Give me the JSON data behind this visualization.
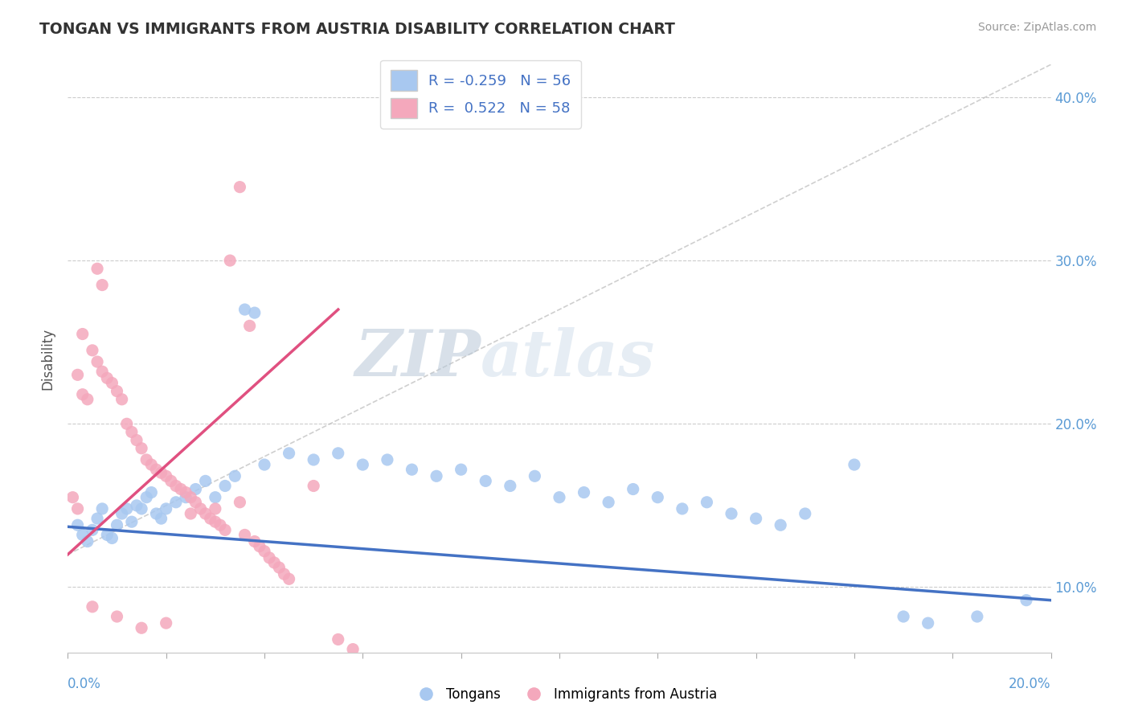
{
  "title": "TONGAN VS IMMIGRANTS FROM AUSTRIA DISABILITY CORRELATION CHART",
  "source": "Source: ZipAtlas.com",
  "ylabel": "Disability",
  "watermark_zip": "ZIP",
  "watermark_atlas": "atlas",
  "legend_blue_label": "Tongans",
  "legend_pink_label": "Immigrants from Austria",
  "blue_R": -0.259,
  "blue_N": 56,
  "pink_R": 0.522,
  "pink_N": 58,
  "xlim": [
    0.0,
    0.2
  ],
  "ylim": [
    0.06,
    0.42
  ],
  "yticks": [
    0.1,
    0.2,
    0.3,
    0.4
  ],
  "ytick_labels": [
    "10.0%",
    "20.0%",
    "30.0%",
    "40.0%"
  ],
  "blue_color": "#A8C8F0",
  "pink_color": "#F4A8BC",
  "blue_line_color": "#4472C4",
  "pink_line_color": "#E05080",
  "grid_color": "#CCCCCC",
  "ref_line_color": "#BBBBBB",
  "blue_scatter": [
    [
      0.002,
      0.138
    ],
    [
      0.003,
      0.132
    ],
    [
      0.004,
      0.128
    ],
    [
      0.005,
      0.135
    ],
    [
      0.006,
      0.142
    ],
    [
      0.007,
      0.148
    ],
    [
      0.008,
      0.132
    ],
    [
      0.009,
      0.13
    ],
    [
      0.01,
      0.138
    ],
    [
      0.011,
      0.145
    ],
    [
      0.012,
      0.148
    ],
    [
      0.013,
      0.14
    ],
    [
      0.014,
      0.15
    ],
    [
      0.015,
      0.148
    ],
    [
      0.016,
      0.155
    ],
    [
      0.017,
      0.158
    ],
    [
      0.018,
      0.145
    ],
    [
      0.019,
      0.142
    ],
    [
      0.02,
      0.148
    ],
    [
      0.022,
      0.152
    ],
    [
      0.024,
      0.155
    ],
    [
      0.026,
      0.16
    ],
    [
      0.028,
      0.165
    ],
    [
      0.03,
      0.155
    ],
    [
      0.032,
      0.162
    ],
    [
      0.034,
      0.168
    ],
    [
      0.036,
      0.27
    ],
    [
      0.038,
      0.268
    ],
    [
      0.04,
      0.175
    ],
    [
      0.045,
      0.182
    ],
    [
      0.05,
      0.178
    ],
    [
      0.055,
      0.182
    ],
    [
      0.06,
      0.175
    ],
    [
      0.065,
      0.178
    ],
    [
      0.07,
      0.172
    ],
    [
      0.075,
      0.168
    ],
    [
      0.08,
      0.172
    ],
    [
      0.085,
      0.165
    ],
    [
      0.09,
      0.162
    ],
    [
      0.095,
      0.168
    ],
    [
      0.1,
      0.155
    ],
    [
      0.105,
      0.158
    ],
    [
      0.11,
      0.152
    ],
    [
      0.115,
      0.16
    ],
    [
      0.12,
      0.155
    ],
    [
      0.125,
      0.148
    ],
    [
      0.13,
      0.152
    ],
    [
      0.135,
      0.145
    ],
    [
      0.14,
      0.142
    ],
    [
      0.145,
      0.138
    ],
    [
      0.15,
      0.145
    ],
    [
      0.16,
      0.175
    ],
    [
      0.17,
      0.082
    ],
    [
      0.175,
      0.078
    ],
    [
      0.185,
      0.082
    ],
    [
      0.195,
      0.092
    ]
  ],
  "pink_scatter": [
    [
      0.001,
      0.155
    ],
    [
      0.002,
      0.148
    ],
    [
      0.003,
      0.218
    ],
    [
      0.004,
      0.215
    ],
    [
      0.005,
      0.245
    ],
    [
      0.006,
      0.238
    ],
    [
      0.007,
      0.232
    ],
    [
      0.008,
      0.228
    ],
    [
      0.009,
      0.225
    ],
    [
      0.01,
      0.22
    ],
    [
      0.011,
      0.215
    ],
    [
      0.012,
      0.2
    ],
    [
      0.013,
      0.195
    ],
    [
      0.014,
      0.19
    ],
    [
      0.015,
      0.185
    ],
    [
      0.016,
      0.178
    ],
    [
      0.017,
      0.175
    ],
    [
      0.018,
      0.172
    ],
    [
      0.019,
      0.17
    ],
    [
      0.02,
      0.168
    ],
    [
      0.021,
      0.165
    ],
    [
      0.022,
      0.162
    ],
    [
      0.023,
      0.16
    ],
    [
      0.024,
      0.158
    ],
    [
      0.025,
      0.155
    ],
    [
      0.026,
      0.152
    ],
    [
      0.027,
      0.148
    ],
    [
      0.028,
      0.145
    ],
    [
      0.029,
      0.142
    ],
    [
      0.03,
      0.14
    ],
    [
      0.031,
      0.138
    ],
    [
      0.032,
      0.135
    ],
    [
      0.033,
      0.3
    ],
    [
      0.035,
      0.345
    ],
    [
      0.036,
      0.132
    ],
    [
      0.037,
      0.26
    ],
    [
      0.038,
      0.128
    ],
    [
      0.039,
      0.125
    ],
    [
      0.04,
      0.122
    ],
    [
      0.041,
      0.118
    ],
    [
      0.042,
      0.115
    ],
    [
      0.043,
      0.112
    ],
    [
      0.044,
      0.108
    ],
    [
      0.045,
      0.105
    ],
    [
      0.006,
      0.295
    ],
    [
      0.007,
      0.285
    ],
    [
      0.003,
      0.255
    ],
    [
      0.002,
      0.23
    ],
    [
      0.025,
      0.145
    ],
    [
      0.03,
      0.148
    ],
    [
      0.035,
      0.152
    ],
    [
      0.05,
      0.162
    ],
    [
      0.055,
      0.068
    ],
    [
      0.058,
      0.062
    ],
    [
      0.02,
      0.078
    ],
    [
      0.015,
      0.075
    ],
    [
      0.01,
      0.082
    ],
    [
      0.005,
      0.088
    ]
  ]
}
